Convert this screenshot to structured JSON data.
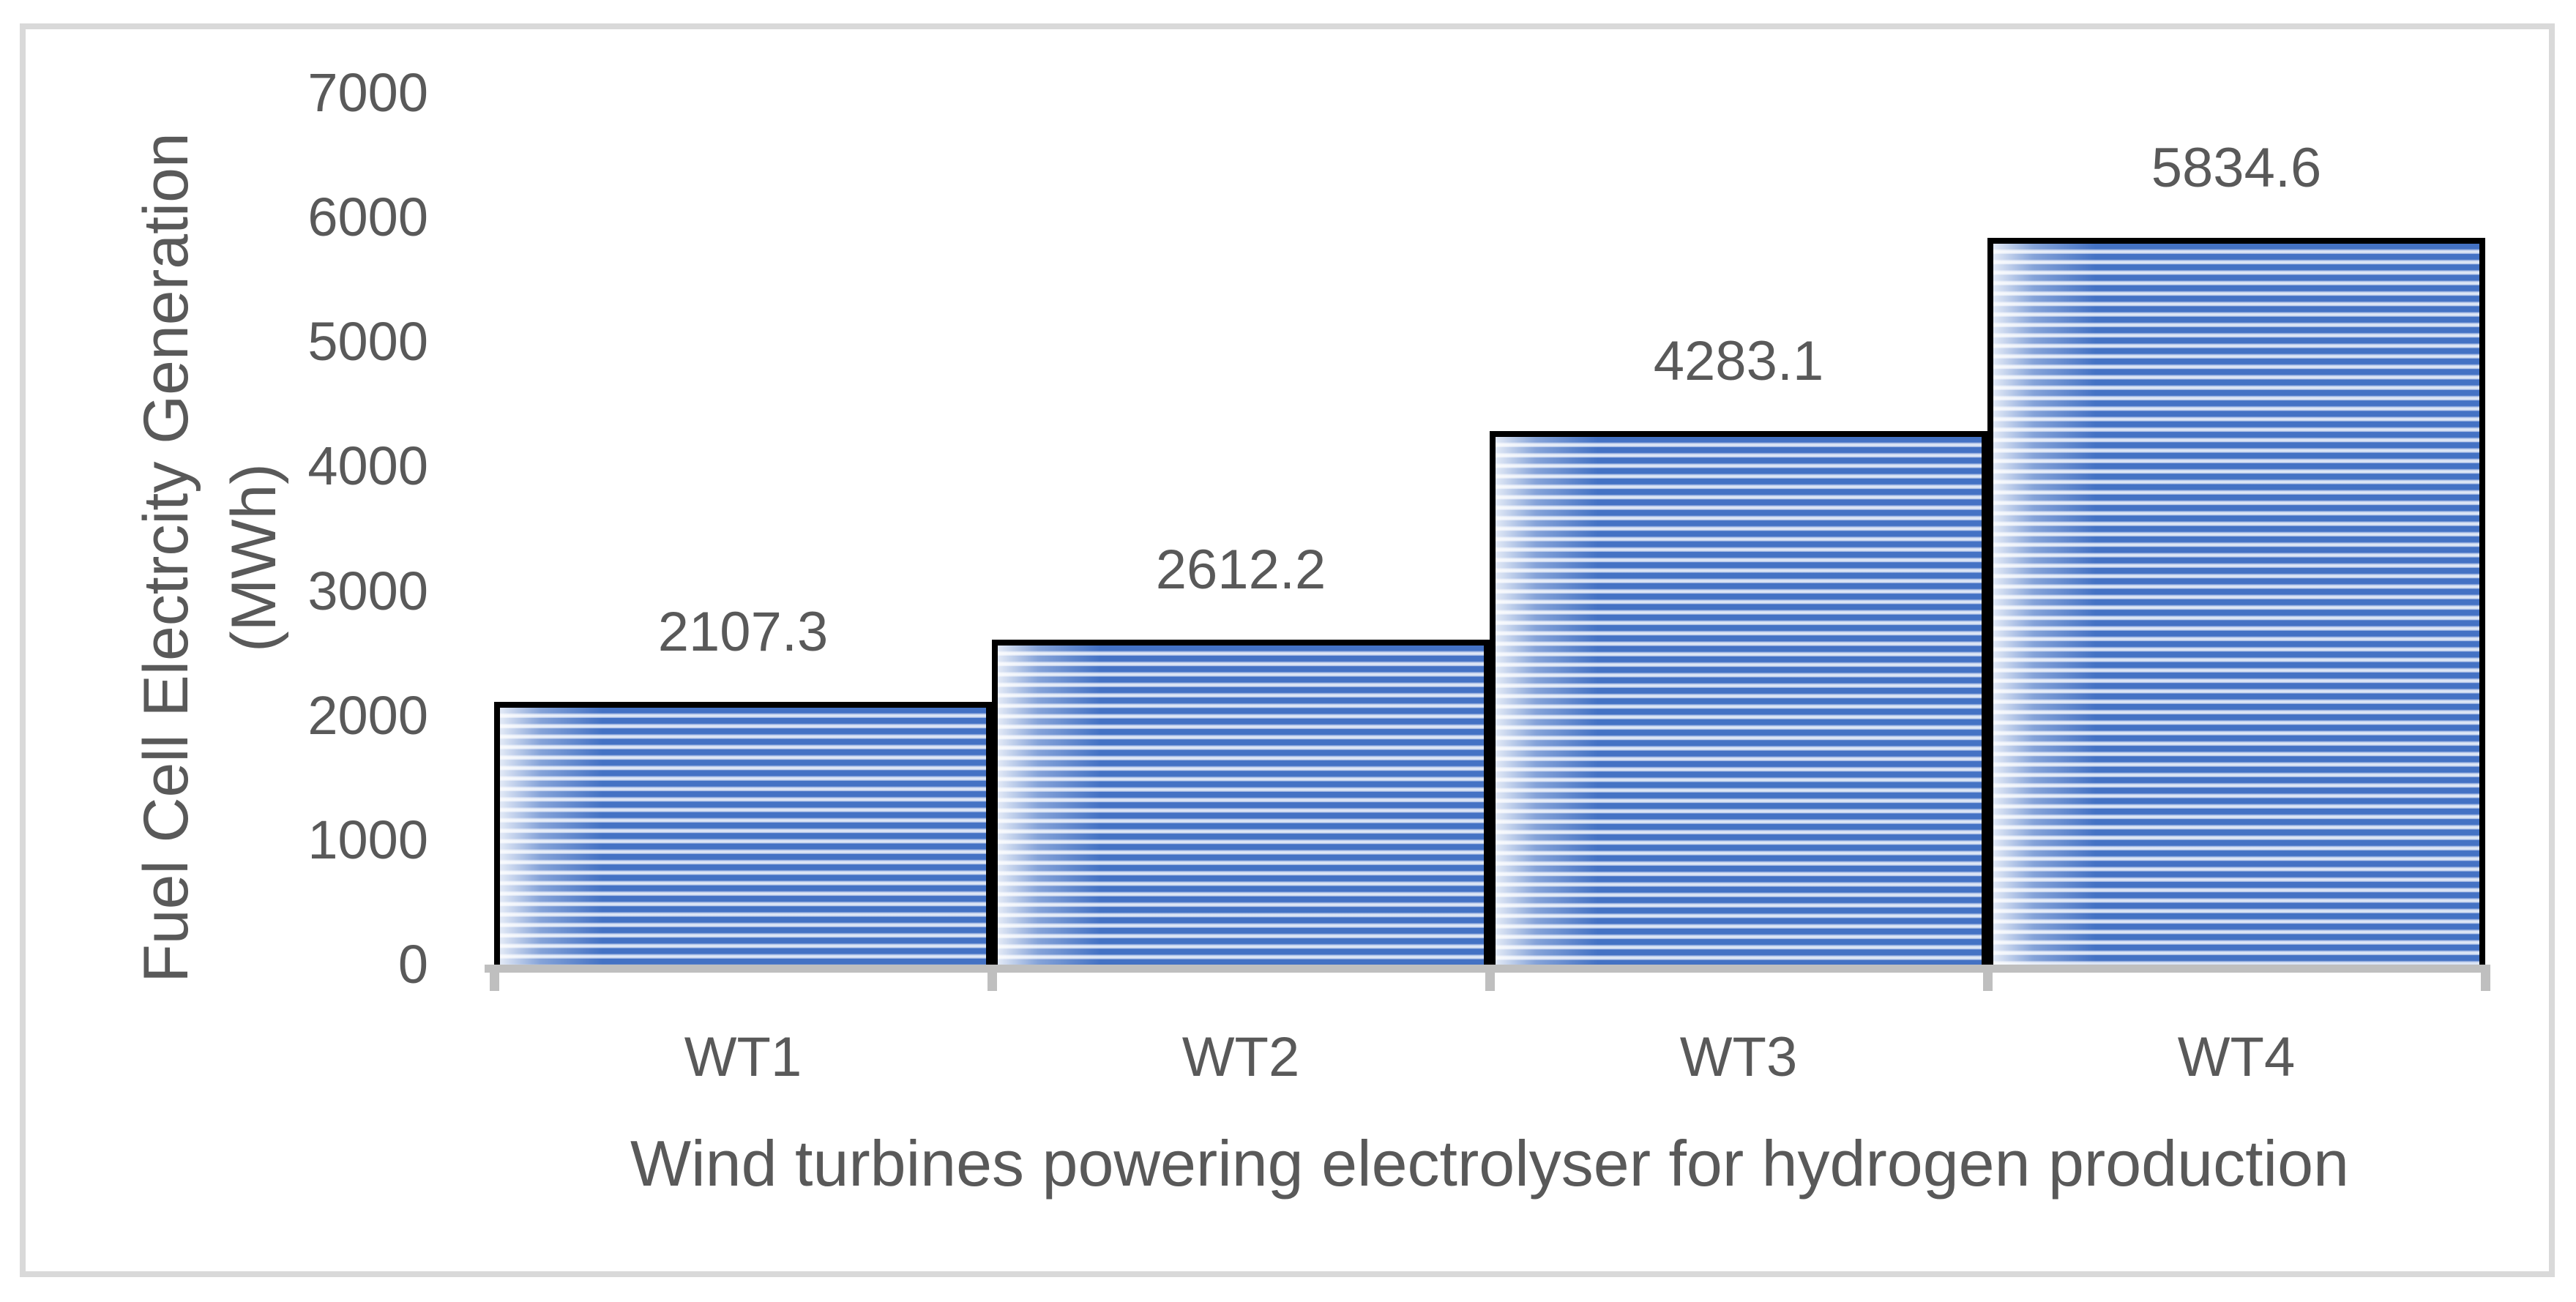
{
  "chart_data": {
    "type": "bar",
    "title": "",
    "categories": [
      "WT1",
      "WT2",
      "WT3",
      "WT4"
    ],
    "values": [
      2107.3,
      2612.2,
      4283.1,
      5834.6
    ],
    "data_labels": [
      "2107.3",
      "2612.2",
      "4283.1",
      "5834.6"
    ],
    "xlabel": "Wind turbines powering electrolyser for hydrogen production",
    "ylabel": "Fuel Cell Electrcity Generation (MWh)",
    "ylabel_lines": [
      "Fuel Cell Electrcity Generation",
      "(MWh)"
    ],
    "ylim": [
      0,
      7000
    ],
    "yticks": [
      0,
      1000,
      2000,
      3000,
      4000,
      5000,
      6000,
      7000
    ],
    "ytick_labels": [
      "0",
      "1000",
      "2000",
      "3000",
      "4000",
      "5000",
      "6000",
      "7000"
    ],
    "grid": false,
    "legend": false,
    "bar_gap_percent": 0,
    "colors": {
      "bar_stripe_dark": "#4472C4",
      "bar_stripe_light": "#DDE6F5",
      "bar_stripe_mid": "#A9BDE6",
      "bar_border": "#000000",
      "axis_line": "#BFBFBF",
      "text": "#595959",
      "chart_border": "#D9D9D9",
      "background": "#FFFFFF"
    }
  }
}
